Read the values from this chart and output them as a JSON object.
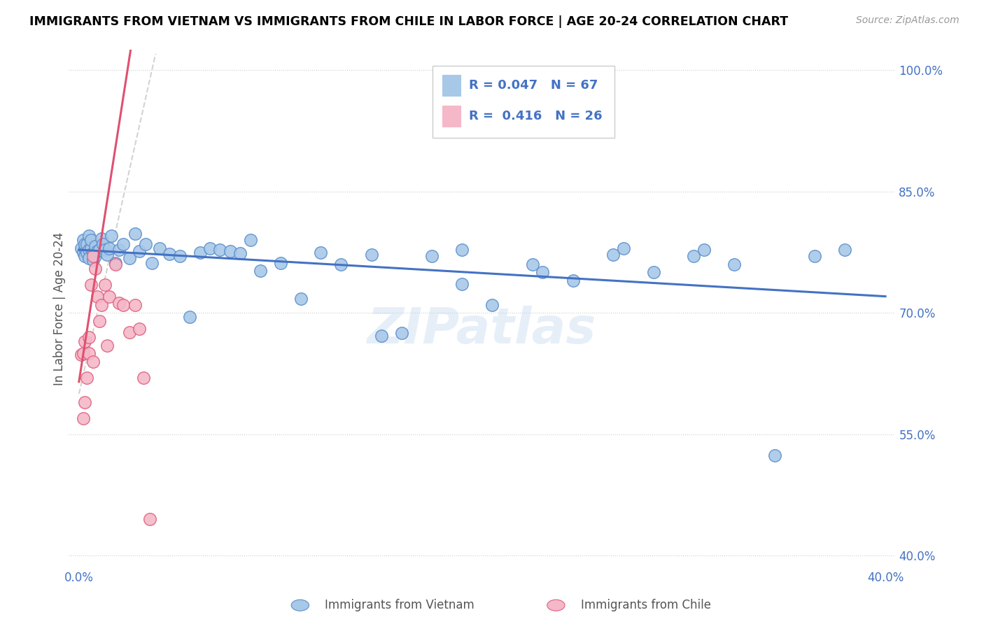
{
  "title": "IMMIGRANTS FROM VIETNAM VS IMMIGRANTS FROM CHILE IN LABOR FORCE | AGE 20-24 CORRELATION CHART",
  "source": "Source: ZipAtlas.com",
  "ylabel": "In Labor Force | Age 20-24",
  "r_vietnam": 0.047,
  "n_vietnam": 67,
  "r_chile": 0.416,
  "n_chile": 26,
  "xlim": [
    -0.005,
    0.405
  ],
  "ylim": [
    0.385,
    1.025
  ],
  "xtick_positions": [
    0.0,
    0.1,
    0.2,
    0.3,
    0.4
  ],
  "xtick_labels": [
    "0.0%",
    "",
    "",
    "",
    "40.0%"
  ],
  "ytick_positions": [
    1.0,
    0.85,
    0.7,
    0.55,
    0.4
  ],
  "ytick_labels": [
    "100.0%",
    "85.0%",
    "70.0%",
    "55.0%",
    "40.0%"
  ],
  "color_vietnam_fill": "#A8C8E8",
  "color_vietnam_edge": "#5B8FCC",
  "color_chile_fill": "#F4B8C8",
  "color_chile_edge": "#E06080",
  "line_color_vietnam": "#4472C4",
  "line_color_chile": "#E05070",
  "line_color_ref": "#C8C8C8",
  "legend_text_color": "#4472C4",
  "watermark": "ZIPatlas",
  "vietnam_x": [
    0.001,
    0.002,
    0.002,
    0.003,
    0.003,
    0.003,
    0.004,
    0.004,
    0.005,
    0.005,
    0.005,
    0.006,
    0.006,
    0.007,
    0.007,
    0.008,
    0.008,
    0.009,
    0.01,
    0.011,
    0.012,
    0.013,
    0.014,
    0.015,
    0.016,
    0.018,
    0.02,
    0.022,
    0.025,
    0.028,
    0.03,
    0.033,
    0.036,
    0.04,
    0.045,
    0.05,
    0.055,
    0.06,
    0.065,
    0.07,
    0.075,
    0.08,
    0.085,
    0.09,
    0.1,
    0.11,
    0.12,
    0.13,
    0.145,
    0.16,
    0.175,
    0.19,
    0.205,
    0.225,
    0.245,
    0.265,
    0.285,
    0.305,
    0.325,
    0.345,
    0.365,
    0.38,
    0.23,
    0.15,
    0.27,
    0.19,
    0.31
  ],
  "vietnam_y": [
    0.78,
    0.79,
    0.775,
    0.78,
    0.785,
    0.77,
    0.775,
    0.785,
    0.778,
    0.795,
    0.768,
    0.78,
    0.79,
    0.775,
    0.765,
    0.782,
    0.77,
    0.776,
    0.778,
    0.792,
    0.785,
    0.778,
    0.772,
    0.78,
    0.795,
    0.762,
    0.778,
    0.785,
    0.768,
    0.798,
    0.776,
    0.785,
    0.762,
    0.78,
    0.773,
    0.77,
    0.695,
    0.775,
    0.78,
    0.778,
    0.776,
    0.774,
    0.79,
    0.752,
    0.762,
    0.718,
    0.775,
    0.76,
    0.772,
    0.675,
    0.77,
    0.778,
    0.71,
    0.76,
    0.74,
    0.772,
    0.75,
    0.77,
    0.76,
    0.524,
    0.77,
    0.778,
    0.75,
    0.672,
    0.78,
    0.736,
    0.778
  ],
  "chile_x": [
    0.001,
    0.002,
    0.003,
    0.003,
    0.004,
    0.005,
    0.005,
    0.006,
    0.007,
    0.008,
    0.009,
    0.01,
    0.011,
    0.013,
    0.015,
    0.018,
    0.02,
    0.022,
    0.025,
    0.028,
    0.03,
    0.032,
    0.035,
    0.002,
    0.007,
    0.014
  ],
  "chile_y": [
    0.648,
    0.65,
    0.59,
    0.665,
    0.62,
    0.67,
    0.65,
    0.735,
    0.77,
    0.755,
    0.72,
    0.69,
    0.71,
    0.735,
    0.72,
    0.76,
    0.712,
    0.71,
    0.676,
    0.71,
    0.68,
    0.62,
    0.445,
    0.57,
    0.64,
    0.66
  ],
  "ref_line": [
    [
      0.0,
      0.038
    ],
    [
      0.6,
      1.02
    ]
  ]
}
